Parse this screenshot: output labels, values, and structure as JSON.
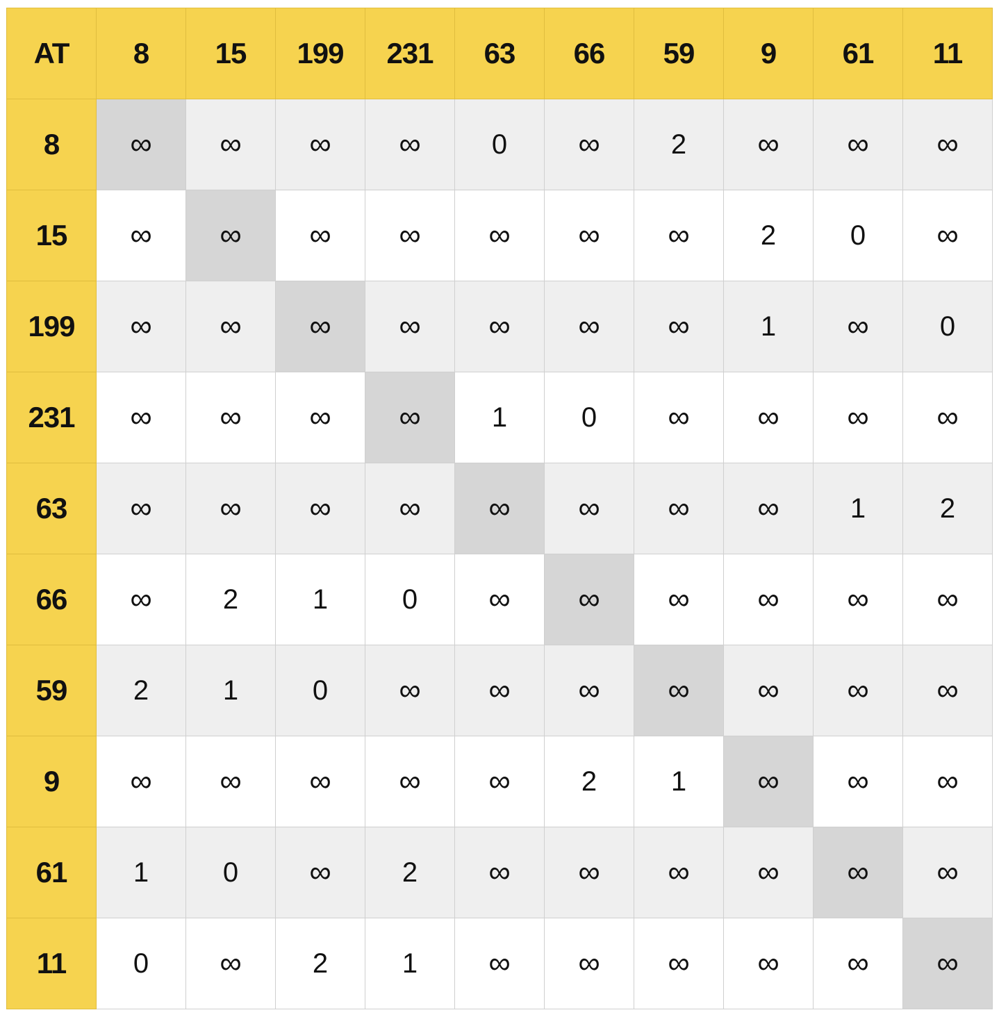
{
  "table": {
    "corner": "AT",
    "columns": [
      "8",
      "15",
      "199",
      "231",
      "63",
      "66",
      "59",
      "9",
      "61",
      "11"
    ],
    "rows": [
      {
        "label": "8",
        "cells": [
          "∞",
          "∞",
          "∞",
          "∞",
          "0",
          "∞",
          "2",
          "∞",
          "∞",
          "∞"
        ]
      },
      {
        "label": "15",
        "cells": [
          "∞",
          "∞",
          "∞",
          "∞",
          "∞",
          "∞",
          "∞",
          "2",
          "0",
          "∞"
        ]
      },
      {
        "label": "199",
        "cells": [
          "∞",
          "∞",
          "∞",
          "∞",
          "∞",
          "∞",
          "∞",
          "1",
          "∞",
          "0"
        ]
      },
      {
        "label": "231",
        "cells": [
          "∞",
          "∞",
          "∞",
          "∞",
          "1",
          "0",
          "∞",
          "∞",
          "∞",
          "∞"
        ]
      },
      {
        "label": "63",
        "cells": [
          "∞",
          "∞",
          "∞",
          "∞",
          "∞",
          "∞",
          "∞",
          "∞",
          "1",
          "2"
        ]
      },
      {
        "label": "66",
        "cells": [
          "∞",
          "2",
          "1",
          "0",
          "∞",
          "∞",
          "∞",
          "∞",
          "∞",
          "∞"
        ]
      },
      {
        "label": "59",
        "cells": [
          "2",
          "1",
          "0",
          "∞",
          "∞",
          "∞",
          "∞",
          "∞",
          "∞",
          "∞"
        ]
      },
      {
        "label": "9",
        "cells": [
          "∞",
          "∞",
          "∞",
          "∞",
          "∞",
          "2",
          "1",
          "∞",
          "∞",
          "∞"
        ]
      },
      {
        "label": "61",
        "cells": [
          "1",
          "0",
          "∞",
          "2",
          "∞",
          "∞",
          "∞",
          "∞",
          "∞",
          "∞"
        ]
      },
      {
        "label": "11",
        "cells": [
          "0",
          "∞",
          "2",
          "1",
          "∞",
          "∞",
          "∞",
          "∞",
          "∞",
          "∞"
        ]
      }
    ]
  },
  "colors": {
    "header_accent": "#f6d34f",
    "row_shaded": "#efefef",
    "row_plain": "#ffffff",
    "diagonal": "#d6d6d6",
    "grid_line": "#cfcfcf"
  }
}
